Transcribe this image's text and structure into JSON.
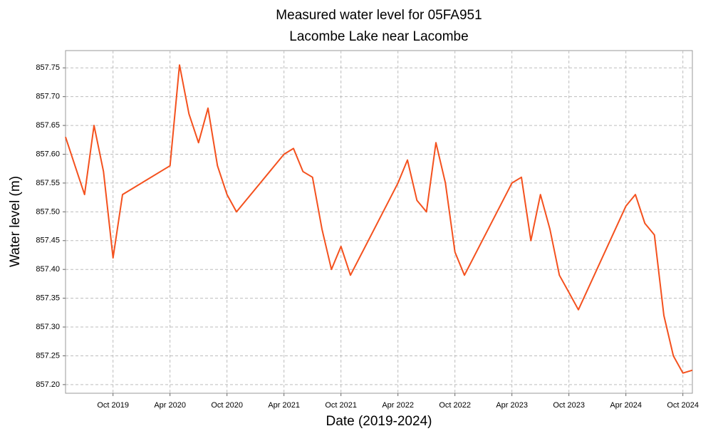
{
  "chart_data": {
    "type": "line",
    "title": "Measured water level for 05FA951",
    "subtitle": "Lacombe Lake near Lacombe",
    "x_label": "Date (2019-2024)",
    "y_label": "Water level (m)",
    "x": [
      "2019-05",
      "2019-06",
      "2019-07",
      "2019-08",
      "2019-09",
      "2019-10",
      "2019-11",
      "2020-04",
      "2020-05",
      "2020-06",
      "2020-07",
      "2020-08",
      "2020-09",
      "2020-10",
      "2020-11",
      "2021-04",
      "2021-05",
      "2021-06",
      "2021-07",
      "2021-08",
      "2021-09",
      "2021-10",
      "2021-11",
      "2022-04",
      "2022-05",
      "2022-06",
      "2022-07",
      "2022-08",
      "2022-09",
      "2022-10",
      "2022-11",
      "2023-04",
      "2023-05",
      "2023-06",
      "2023-07",
      "2023-08",
      "2023-09",
      "2023-10",
      "2023-11",
      "2024-04",
      "2024-05",
      "2024-06",
      "2024-07",
      "2024-08",
      "2024-09",
      "2024-10",
      "2024-11"
    ],
    "series": [
      {
        "name": "Water level",
        "color": "#f4511e",
        "values": [
          857.63,
          857.58,
          857.53,
          857.65,
          857.57,
          857.42,
          857.53,
          857.58,
          857.755,
          857.67,
          857.62,
          857.68,
          857.58,
          857.53,
          857.5,
          857.6,
          857.61,
          857.57,
          857.56,
          857.47,
          857.4,
          857.44,
          857.39,
          857.55,
          857.59,
          857.52,
          857.5,
          857.62,
          857.55,
          857.43,
          857.39,
          857.55,
          857.56,
          857.45,
          857.53,
          857.47,
          857.39,
          857.36,
          857.33,
          857.51,
          857.53,
          857.48,
          857.46,
          857.32,
          857.25,
          857.22,
          857.225
        ]
      }
    ],
    "xlim": [
      "2019-05",
      "2024-11"
    ],
    "xticks": [
      {
        "value": "2019-10",
        "label": "Oct 2019"
      },
      {
        "value": "2020-04",
        "label": "Apr 2020"
      },
      {
        "value": "2020-10",
        "label": "Oct 2020"
      },
      {
        "value": "2021-04",
        "label": "Apr 2021"
      },
      {
        "value": "2021-10",
        "label": "Oct 2021"
      },
      {
        "value": "2022-04",
        "label": "Apr 2022"
      },
      {
        "value": "2022-10",
        "label": "Oct 2022"
      },
      {
        "value": "2023-04",
        "label": "Apr 2023"
      },
      {
        "value": "2023-10",
        "label": "Oct 2023"
      },
      {
        "value": "2024-04",
        "label": "Apr 2024"
      },
      {
        "value": "2024-10",
        "label": "Oct 2024"
      }
    ],
    "ylim": [
      857.185,
      857.78
    ],
    "yticks": [
      {
        "value": 857.2,
        "label": "857.20"
      },
      {
        "value": 857.25,
        "label": "857.25"
      },
      {
        "value": 857.3,
        "label": "857.30"
      },
      {
        "value": 857.35,
        "label": "857.35"
      },
      {
        "value": 857.4,
        "label": "857.40"
      },
      {
        "value": 857.45,
        "label": "857.45"
      },
      {
        "value": 857.5,
        "label": "857.50"
      },
      {
        "value": 857.55,
        "label": "857.55"
      },
      {
        "value": 857.6,
        "label": "857.60"
      },
      {
        "value": 857.65,
        "label": "857.65"
      },
      {
        "value": 857.7,
        "label": "857.70"
      },
      {
        "value": 857.75,
        "label": "857.75"
      }
    ],
    "grid": true
  }
}
